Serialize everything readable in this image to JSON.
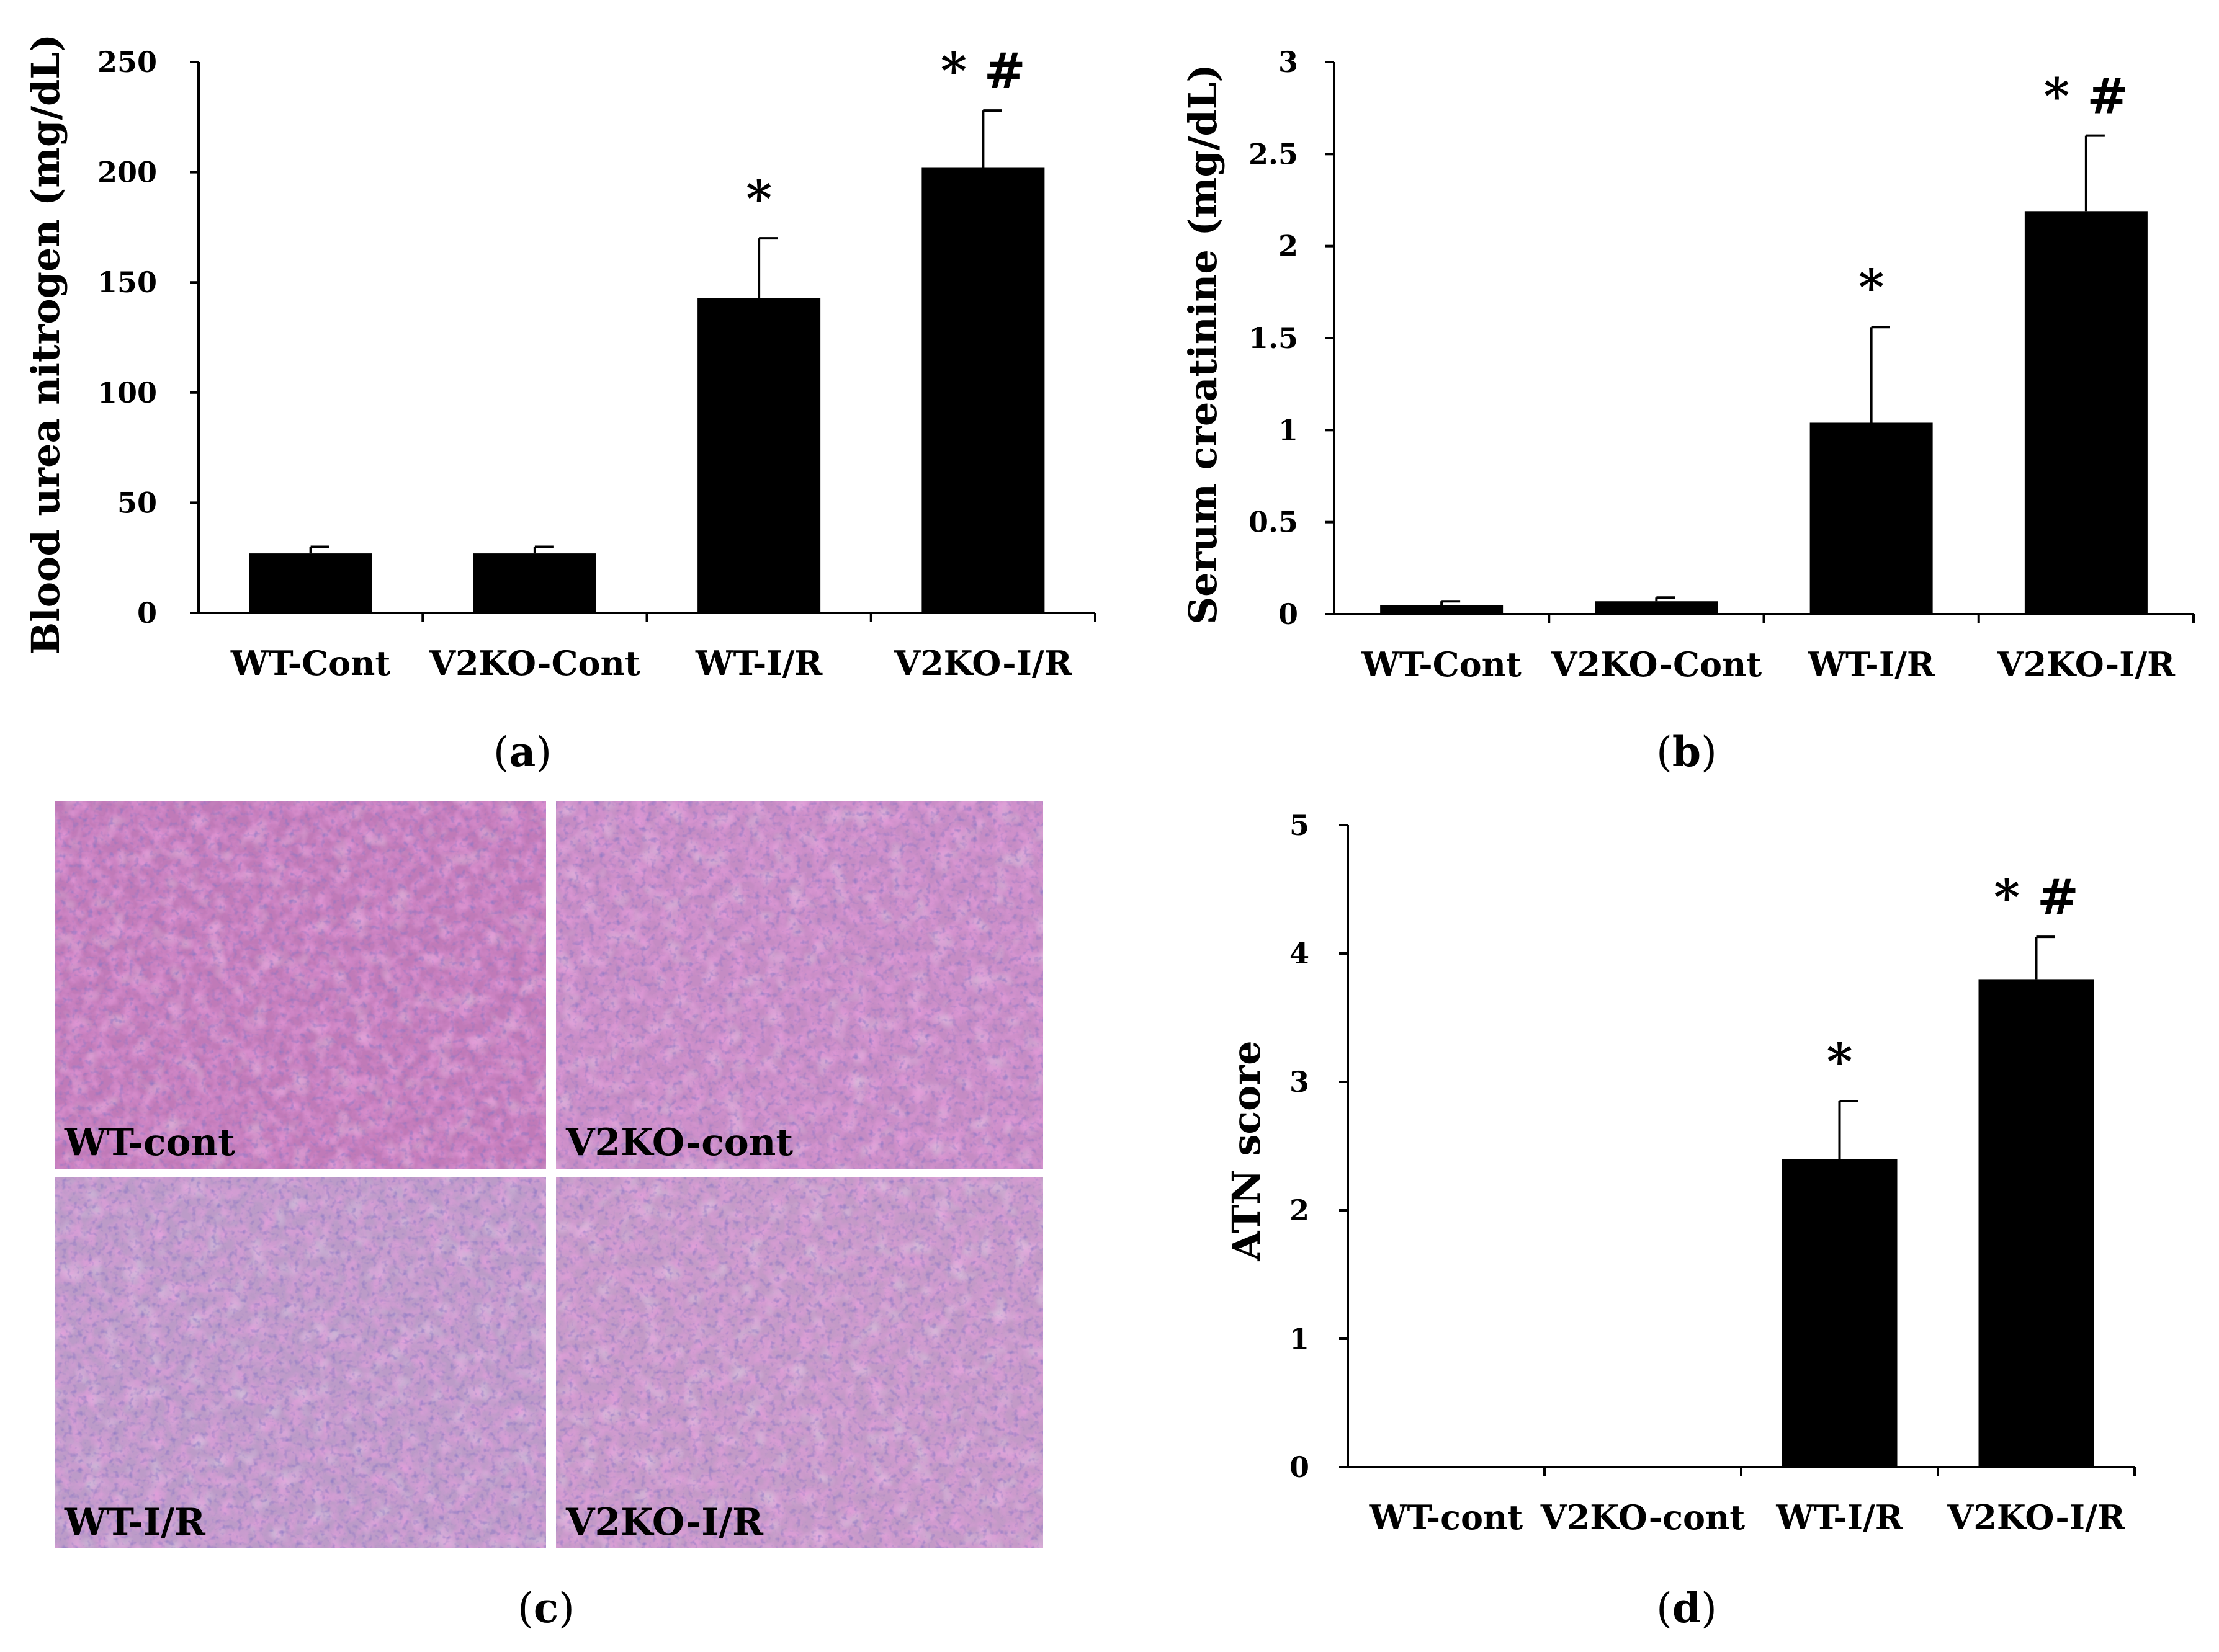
{
  "chart_data": [
    {
      "id": "a",
      "type": "bar",
      "panel_label": "a",
      "ylabel": "Blood urea nitrogen (mg/dL)",
      "categories": [
        "WT-Cont",
        "V2KO-Cont",
        "WT-I/R",
        "V2KO-I/R"
      ],
      "values": [
        27,
        27,
        143,
        202
      ],
      "errors": [
        3,
        3,
        27,
        26
      ],
      "annotations": [
        "",
        "",
        "*",
        "* #"
      ],
      "ylim": [
        0,
        250
      ],
      "yticks": [
        0,
        50,
        100,
        150,
        200,
        250
      ],
      "ytick_labels": [
        "0",
        "50",
        "100",
        "150",
        "200",
        "250"
      ]
    },
    {
      "id": "b",
      "type": "bar",
      "panel_label": "b",
      "ylabel": "Serum creatinine (mg/dL)",
      "categories": [
        "WT-Cont",
        "V2KO-Cont",
        "WT-I/R",
        "V2KO-I/R"
      ],
      "values": [
        0.05,
        0.07,
        1.04,
        2.19
      ],
      "errors": [
        0.02,
        0.02,
        0.52,
        0.41
      ],
      "annotations": [
        "",
        "",
        "*",
        "* #"
      ],
      "ylim": [
        0,
        3
      ],
      "yticks": [
        0,
        0.5,
        1,
        1.5,
        2,
        2.5,
        3
      ],
      "ytick_labels": [
        "0",
        "0.5",
        "1",
        "1.5",
        "2",
        "2.5",
        "3"
      ]
    },
    {
      "id": "d",
      "type": "bar",
      "panel_label": "d",
      "ylabel": "ATN score",
      "categories": [
        "WT-cont",
        "V2KO-cont",
        "WT-I/R",
        "V2KO-I/R"
      ],
      "values": [
        0,
        0,
        2.4,
        3.8
      ],
      "errors": [
        0,
        0,
        0.45,
        0.33
      ],
      "annotations": [
        "",
        "",
        "*",
        "* #"
      ],
      "ylim": [
        0,
        5
      ],
      "yticks": [
        0,
        1,
        2,
        3,
        4,
        5
      ],
      "ytick_labels": [
        "0",
        "1",
        "2",
        "3",
        "4",
        "5"
      ]
    }
  ],
  "histology": {
    "panel_label": "c",
    "images": [
      {
        "label": "WT-cont",
        "base": "#c07ab8",
        "accent": "#d23f9e",
        "nuclei": "#4a3a94"
      },
      {
        "label": "V2KO-cont",
        "base": "#c58cc4",
        "accent": "#cc3f9a",
        "nuclei": "#4c3c96"
      },
      {
        "label": "WT-I/R",
        "base": "#bc9bc8",
        "accent": "#d79ac8",
        "nuclei": "#4e3f92"
      },
      {
        "label": "V2KO-I/R",
        "base": "#c39ac7",
        "accent": "#d888bc",
        "nuclei": "#4d3c90"
      }
    ]
  }
}
